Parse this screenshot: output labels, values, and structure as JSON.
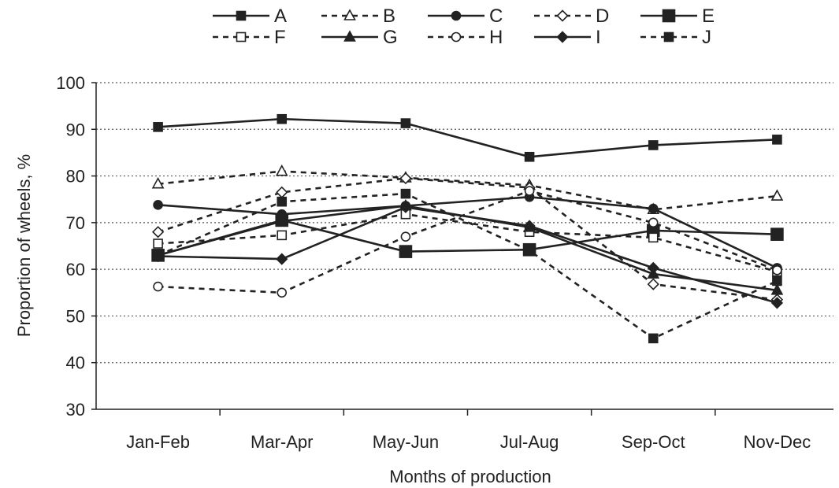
{
  "chart_data": {
    "type": "line",
    "title": "",
    "xlabel": "Months of production",
    "ylabel": "Proportion of wheels, %",
    "categories": [
      "Jan-Feb",
      "Mar-Apr",
      "May-Jun",
      "Jul-Aug",
      "Sep-Oct",
      "Nov-Dec"
    ],
    "ylim": [
      30,
      100
    ],
    "yticks": [
      "30",
      "40",
      "50",
      "60",
      "70",
      "80",
      "90",
      "100"
    ],
    "grid": "horizontal dotted",
    "legend_position": "top",
    "series": [
      {
        "name": "A",
        "values": [
          90.5,
          92.2,
          91.3,
          84.1,
          86.6,
          87.8
        ],
        "line": "solid",
        "marker": "square-filled"
      },
      {
        "name": "B",
        "values": [
          78.3,
          81.0,
          79.6,
          78.0,
          72.8,
          75.7
        ],
        "line": "dashed",
        "marker": "triangle-open"
      },
      {
        "name": "C",
        "values": [
          73.8,
          71.8,
          73.6,
          75.5,
          73.0,
          60.3
        ],
        "line": "solid",
        "marker": "circle-filled"
      },
      {
        "name": "D",
        "values": [
          68.0,
          76.5,
          79.5,
          77.5,
          56.8,
          53.5
        ],
        "line": "dashed",
        "marker": "diamond-open"
      },
      {
        "name": "E",
        "values": [
          63.0,
          70.5,
          63.8,
          64.2,
          68.3,
          67.5
        ],
        "line": "solid",
        "marker": "square-filled-large"
      },
      {
        "name": "F",
        "values": [
          65.5,
          67.3,
          71.8,
          68.0,
          66.8,
          59.5
        ],
        "line": "dashed",
        "marker": "square-open"
      },
      {
        "name": "G",
        "values": [
          63.0,
          70.3,
          73.6,
          69.0,
          59.0,
          55.5
        ],
        "line": "solid",
        "marker": "triangle-filled"
      },
      {
        "name": "H",
        "values": [
          56.3,
          55.0,
          67.0,
          76.8,
          70.0,
          59.8
        ],
        "line": "dashed",
        "marker": "circle-open"
      },
      {
        "name": "I",
        "values": [
          62.8,
          62.2,
          73.3,
          69.3,
          60.3,
          52.8
        ],
        "line": "solid",
        "marker": "diamond-filled"
      },
      {
        "name": "J",
        "values": [
          63.0,
          74.5,
          76.2,
          64.0,
          45.2,
          57.5
        ],
        "line": "dashed",
        "marker": "square-filled"
      }
    ]
  }
}
